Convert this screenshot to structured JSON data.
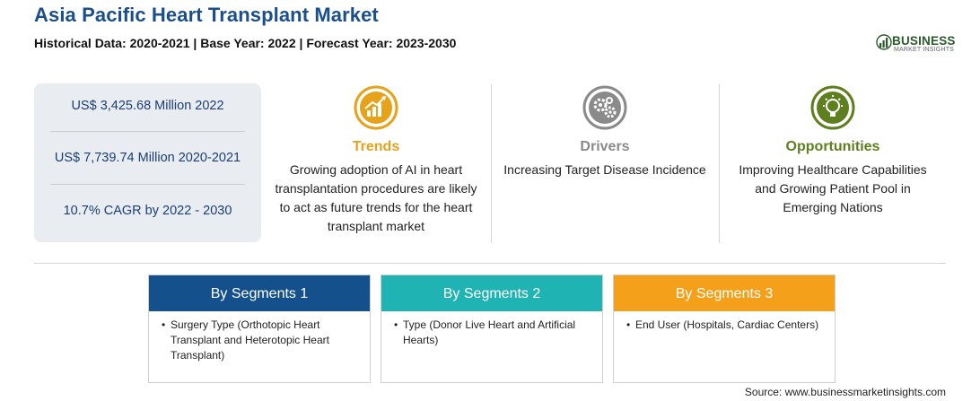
{
  "header": {
    "title": "Asia Pacific Heart Transplant Market",
    "subtitle": "Historical Data: 2020-2021 | Base Year: 2022 | Forecast Year: 2023-2030"
  },
  "logo": {
    "name": "BUSINESS",
    "tagline": "MARKET INSIGHTS"
  },
  "stats": [
    "US$ 3,425.68 Million 2022",
    "US$ 7,739.74 Million 2020-2021",
    "10.7% CAGR by 2022 - 2030"
  ],
  "columns": [
    {
      "heading": "Trends",
      "color": "#e6a21a",
      "icon": "chart-growth-icon",
      "desc": "Growing adoption of AI in heart transplantation procedures are likely to act as future trends for the heart transplant market"
    },
    {
      "heading": "Drivers",
      "color": "#8a8a8a",
      "icon": "gears-icon",
      "desc": "Increasing Target Disease Incidence"
    },
    {
      "heading": "Opportunities",
      "color": "#5e7f1d",
      "icon": "lightbulb-icon",
      "desc": "Improving Healthcare Capabilities and Growing Patient Pool in Emerging Nations"
    }
  ],
  "segments": [
    {
      "title": "By Segments 1",
      "color": "#14508c",
      "item": "Surgery Type (Orthotopic Heart Transplant and Heterotopic Heart Transplant)"
    },
    {
      "title": "By Segments 2",
      "color": "#1fb3b3",
      "item": "Type (Donor Live Heart and Artificial Hearts)"
    },
    {
      "title": "By Segments 3",
      "color": "#f5a01a",
      "item": "End User (Hospitals, Cardiac Centers)"
    }
  ],
  "bullet_char": "•",
  "source": "Source: www.businessmarketinsights.com"
}
